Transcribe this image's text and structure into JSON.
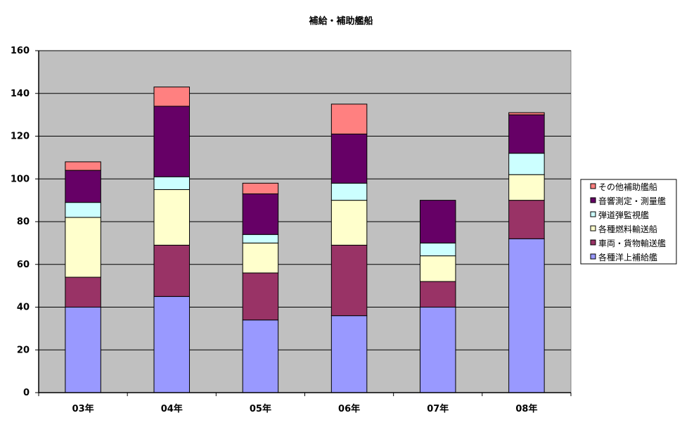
{
  "chart_data": {
    "type": "bar",
    "stacked": true,
    "title": "補給・補助艦船",
    "xlabel": "",
    "ylabel": "",
    "categories": [
      "03年",
      "04年",
      "05年",
      "06年",
      "07年",
      "08年"
    ],
    "ylim": [
      0,
      160
    ],
    "yticks": [
      0,
      20,
      40,
      60,
      80,
      100,
      120,
      140,
      160
    ],
    "grid": true,
    "legend_position": "right",
    "plot_background": "#c0c0c0",
    "series": [
      {
        "name": "各種洋上補給艦",
        "color": "#9999ff",
        "values": [
          40,
          45,
          34,
          36,
          40,
          72
        ]
      },
      {
        "name": "車両・貨物輸送艦",
        "color": "#993366",
        "values": [
          14,
          24,
          22,
          33,
          12,
          18
        ]
      },
      {
        "name": "各種燃料輸送船",
        "color": "#ffffcc",
        "values": [
          28,
          26,
          14,
          21,
          12,
          12
        ]
      },
      {
        "name": "弾道弾監視艦",
        "color": "#ccffff",
        "values": [
          7,
          6,
          4,
          8,
          6,
          10
        ]
      },
      {
        "name": "音響測定・測量艦",
        "color": "#660066",
        "values": [
          15,
          33,
          19,
          23,
          20,
          18
        ]
      },
      {
        "name": "その他補助艦船",
        "color": "#ff8080",
        "values": [
          4,
          9,
          5,
          14,
          0,
          1
        ]
      }
    ]
  }
}
